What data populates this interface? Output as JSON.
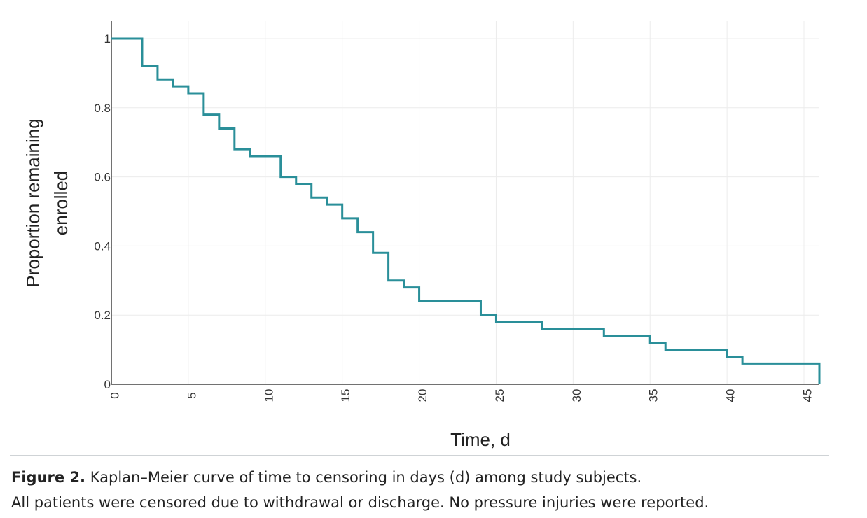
{
  "chart_data": {
    "type": "line",
    "step": "post",
    "xlabel": "Time, d",
    "ylabel": [
      "Proportion remaining",
      "enrolled"
    ],
    "xlim": [
      0,
      46
    ],
    "ylim": [
      0,
      1
    ],
    "x_ticks": [
      0,
      5,
      10,
      15,
      20,
      25,
      30,
      35,
      40,
      45
    ],
    "x_tick_labels": [
      "0",
      "5",
      "10",
      "15",
      "20",
      "25",
      "30",
      "35",
      "40",
      "45"
    ],
    "y_ticks": [
      0,
      0.2,
      0.4,
      0.6,
      0.8,
      1
    ],
    "y_tick_labels": [
      "0",
      "0.2",
      "0.4",
      "0.6",
      "0.8",
      "1"
    ],
    "grid": true,
    "line_color": "#2a8f99",
    "x": [
      0,
      2,
      3,
      4,
      5,
      6,
      7,
      8,
      9,
      11,
      12,
      13,
      14,
      15,
      16,
      17,
      18,
      19,
      20,
      24,
      25,
      28,
      32,
      35,
      36,
      40,
      41,
      46
    ],
    "y": [
      1.0,
      0.92,
      0.88,
      0.86,
      0.84,
      0.78,
      0.74,
      0.68,
      0.66,
      0.6,
      0.58,
      0.54,
      0.52,
      0.48,
      0.44,
      0.38,
      0.3,
      0.28,
      0.24,
      0.2,
      0.18,
      0.16,
      0.14,
      0.12,
      0.1,
      0.08,
      0.06,
      0.0
    ]
  },
  "caption": {
    "label": "Figure 2.",
    "line1": "Kaplan–Meier curve of time to censoring in days (d) among study subjects.",
    "line2": "All patients were censored due to withdrawal or discharge. No pressure injuries were reported."
  }
}
